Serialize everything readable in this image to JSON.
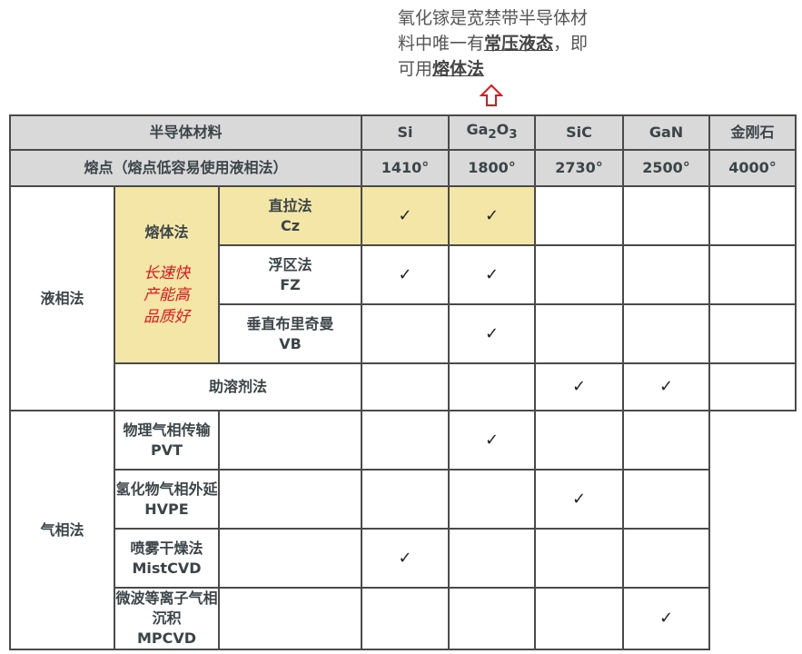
{
  "note": {
    "line1": "氧化镓是宽禁带半导体材料中唯一有",
    "em1": "常压液态",
    "mid": "，即可用",
    "em2": "熔体法"
  },
  "header": {
    "material_label": "半导体材料",
    "melting_label": "熔点（熔点低容易使用液相法）",
    "materials": [
      {
        "name": "Si"
      },
      {
        "name": "Ga",
        "sub": "2",
        "name2": "O",
        "sub2": "3"
      },
      {
        "name": "SiC"
      },
      {
        "name": "GaN"
      },
      {
        "name": "金刚石"
      }
    ],
    "melting_points": [
      "1410°",
      "1800°",
      "2730°",
      "2500°",
      "4000°"
    ]
  },
  "groups": {
    "liquid": "液相法",
    "melt": "熔体法",
    "melt_note": [
      "长速快",
      "产能高",
      "品质好"
    ],
    "gas": "气相法"
  },
  "check": "✓",
  "colors": {
    "header_bg": "#d9d9d9",
    "highlight": "#f3e6a6",
    "note_red": "#e8141b",
    "arrow": "#e8141b"
  },
  "rows": [
    {
      "name": "直拉法",
      "abbr": "Cz",
      "checks": [
        true,
        true,
        false,
        false,
        false
      ]
    },
    {
      "name": "浮区法",
      "abbr": "FZ",
      "checks": [
        true,
        true,
        false,
        false,
        false
      ]
    },
    {
      "name": "垂直布里奇曼",
      "abbr": "VB",
      "checks": [
        false,
        true,
        false,
        false,
        false
      ]
    },
    {
      "name": "助溶剂法",
      "abbr": "",
      "checks": [
        false,
        false,
        true,
        true,
        false
      ]
    },
    {
      "name": "物理气相传输",
      "abbr": "PVT",
      "checks": [
        false,
        false,
        true,
        false,
        false
      ]
    },
    {
      "name": "氢化物气相外延",
      "abbr": "HVPE",
      "checks": [
        false,
        false,
        false,
        true,
        false
      ]
    },
    {
      "name": "喷雾干燥法",
      "abbr": "MistCVD",
      "checks": [
        false,
        true,
        false,
        false,
        false
      ]
    },
    {
      "name": "微波等离子气相沉积",
      "abbr": "MPCVD",
      "checks": [
        false,
        false,
        false,
        false,
        true
      ]
    }
  ]
}
